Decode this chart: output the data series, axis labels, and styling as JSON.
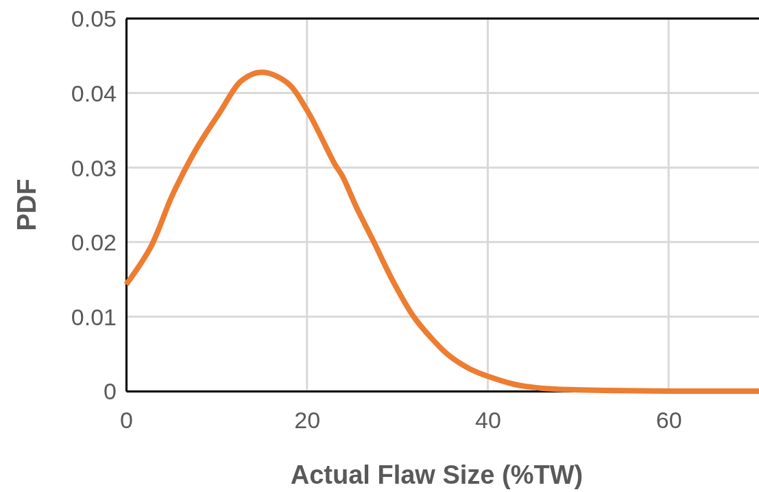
{
  "chart_data": {
    "type": "line",
    "xlabel": "Actual Flaw Size (%TW)",
    "ylabel": "PDF",
    "x": [
      0,
      2.7,
      5,
      6.5,
      8,
      10.3,
      12.8,
      15,
      17.8,
      20.1,
      23.1,
      23.9,
      25.5,
      27.4,
      29.5,
      31.8,
      33.7,
      35.6,
      38,
      40,
      43,
      45.9,
      49,
      53.2,
      60,
      70
    ],
    "series": [
      {
        "color": "#ed7d31",
        "values": [
          0.0143,
          0.0193,
          0.026,
          0.0297,
          0.033,
          0.0373,
          0.0417,
          0.0428,
          0.0414,
          0.0375,
          0.0304,
          0.0289,
          0.0246,
          0.02,
          0.0148,
          0.01,
          0.0072,
          0.0049,
          0.003,
          0.002,
          0.0009,
          0.0004,
          0.0002,
          0.0001,
          0,
          0
        ]
      }
    ],
    "xlim": [
      0,
      70
    ],
    "xticks": [
      0,
      20,
      40,
      60
    ],
    "ylim": [
      0,
      0.05
    ],
    "yticks": [
      0,
      0.01,
      0.02,
      0.03,
      0.04,
      0.05
    ],
    "grid": true,
    "marker": "none",
    "line_style": "solid"
  }
}
